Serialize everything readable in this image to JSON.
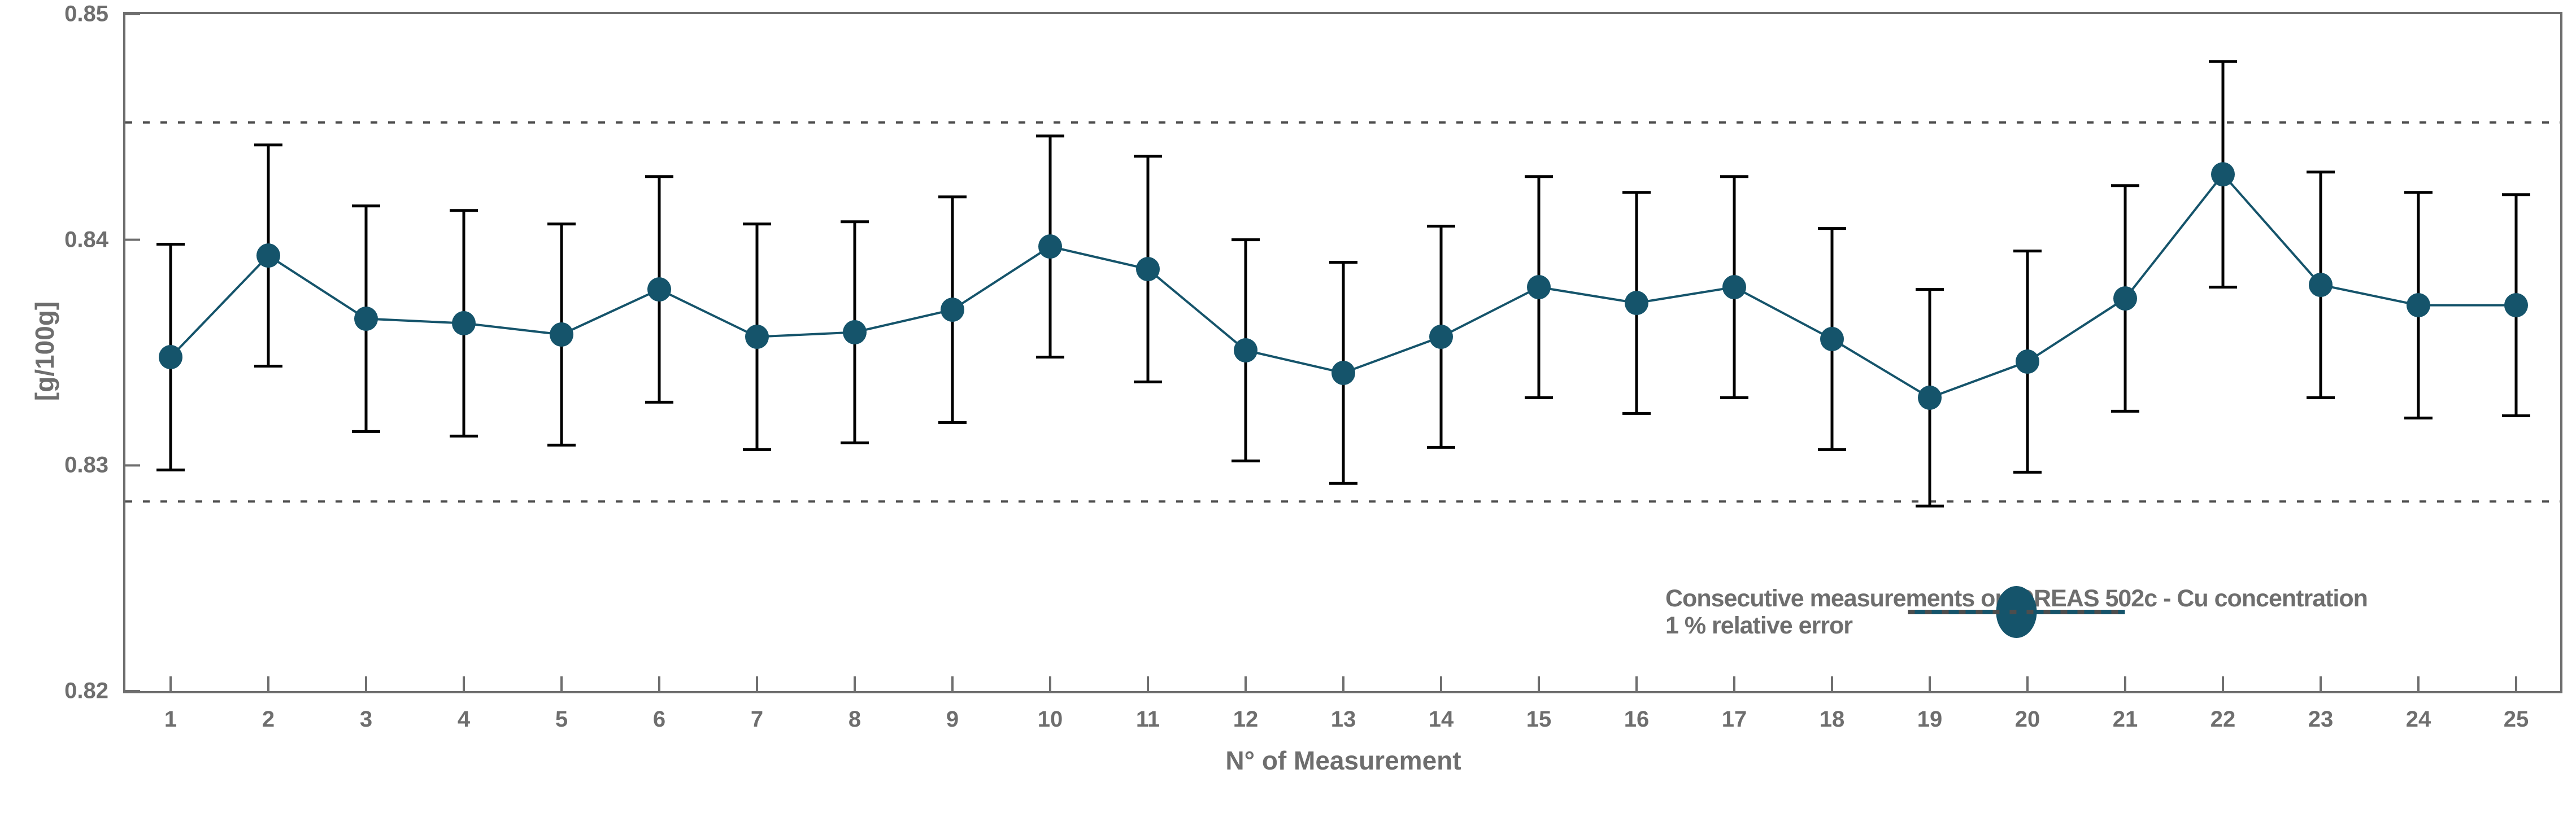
{
  "chart_data": {
    "type": "line",
    "title": "",
    "xlabel": "N° of Measurement",
    "ylabel": "[g/100g]",
    "x": [
      1,
      2,
      3,
      4,
      5,
      6,
      7,
      8,
      9,
      10,
      11,
      12,
      13,
      14,
      15,
      16,
      17,
      18,
      19,
      20,
      21,
      22,
      23,
      24,
      25
    ],
    "series": [
      {
        "name": "Consecutive measurements on OREAS 502c - Cu concentration",
        "values": [
          0.8348,
          0.8393,
          0.8365,
          0.8363,
          0.8358,
          0.8378,
          0.8357,
          0.8359,
          0.8369,
          0.8397,
          0.8387,
          0.8351,
          0.8341,
          0.8357,
          0.8379,
          0.8372,
          0.8379,
          0.8356,
          0.833,
          0.8346,
          0.8374,
          0.8429,
          0.838,
          0.8371,
          0.8371
        ],
        "errors": [
          0.005,
          0.0049,
          0.005,
          0.005,
          0.0049,
          0.005,
          0.005,
          0.0049,
          0.005,
          0.0049,
          0.005,
          0.0049,
          0.0049,
          0.0049,
          0.0049,
          0.0049,
          0.0049,
          0.0049,
          0.0048,
          0.0049,
          0.005,
          0.005,
          0.005,
          0.005,
          0.0049
        ]
      }
    ],
    "reference_lines": [
      {
        "label": "1 % relative error",
        "values": [
          0.8452,
          0.8284
        ],
        "style": "dotted"
      }
    ],
    "ylim": [
      0.82,
      0.85
    ],
    "yticks": [
      "0.85",
      "0.84",
      "0.83",
      "0.82"
    ],
    "ytick_values": [
      0.85,
      0.84,
      0.83,
      0.82
    ],
    "legend_position": "lower right",
    "grid": false
  },
  "legend": {
    "series_label": "Consecutive measurements on OREAS 502c - Cu concentration",
    "reference_label": "1 % relative error"
  },
  "colors": {
    "series": "#15546b",
    "error_bar": "#000000",
    "reference_line": "#4d4d4d",
    "axis": "#6e6e6e",
    "text": "#6e6e6e"
  }
}
